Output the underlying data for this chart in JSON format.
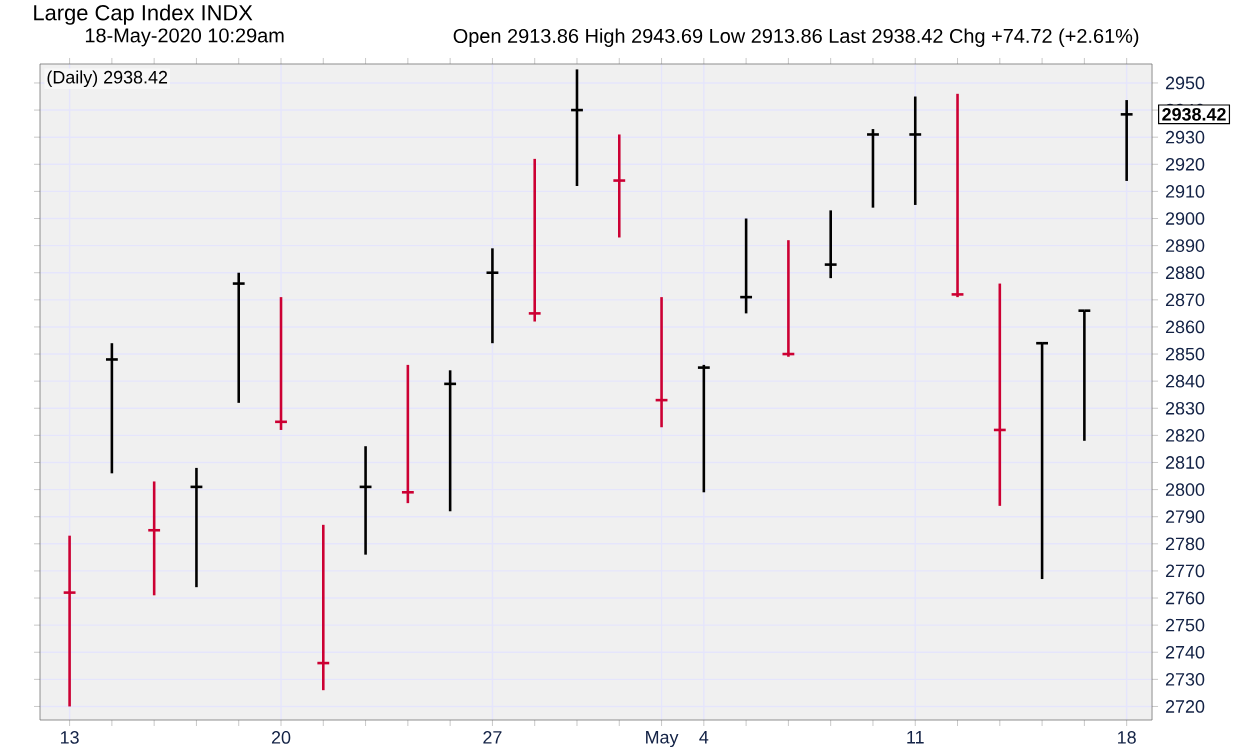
{
  "chart_data": {
    "type": "candlestick",
    "title": "Large Cap Index INDX",
    "categories": [
      "13",
      null,
      null,
      null,
      null,
      "20",
      null,
      null,
      null,
      null,
      "27",
      null,
      null,
      null,
      "May",
      "4",
      null,
      null,
      null,
      null,
      "11",
      null,
      null,
      null,
      null,
      "18"
    ],
    "ohlc": [
      [
        2762,
        2783,
        2720,
        2762
      ],
      [
        2848,
        2854,
        2806,
        2848
      ],
      [
        2785,
        2803,
        2761,
        2785
      ],
      [
        2801,
        2808,
        2764,
        2801
      ],
      [
        2876,
        2880,
        2832,
        2876
      ],
      [
        2825,
        2871,
        2822,
        2825
      ],
      [
        2736,
        2787,
        2726,
        2736
      ],
      [
        2801,
        2816,
        2776,
        2801
      ],
      [
        2799,
        2846,
        2795,
        2799
      ],
      [
        2839,
        2844,
        2792,
        2839
      ],
      [
        2880,
        2889,
        2854,
        2880
      ],
      [
        2865,
        2922,
        2862,
        2865
      ],
      [
        2940,
        2955,
        2912,
        2940
      ],
      [
        2914,
        2931,
        2893,
        2914
      ],
      [
        2833,
        2871,
        2823,
        2833
      ],
      [
        2845,
        2846,
        2799,
        2845
      ],
      [
        2871,
        2900,
        2865,
        2871
      ],
      [
        2850,
        2892,
        2849,
        2850
      ],
      [
        2883,
        2903,
        2878,
        2883
      ],
      [
        2931,
        2933,
        2904,
        2931
      ],
      [
        2931,
        2945,
        2905,
        2931
      ],
      [
        2872,
        2946,
        2871,
        2872
      ],
      [
        2822,
        2876,
        2794,
        2822
      ],
      [
        2854,
        2854,
        2767,
        2854
      ],
      [
        2866,
        2866,
        2818,
        2866
      ],
      [
        2938.42,
        2943.69,
        2913.86,
        2938.42
      ]
    ],
    "colors": [
      "#cc0033",
      "#000000",
      "#cc0033",
      "#000000",
      "#000000",
      "#cc0033",
      "#cc0033",
      "#000000",
      "#cc0033",
      "#000000",
      "#000000",
      "#cc0033",
      "#000000",
      "#cc0033",
      "#cc0033",
      "#000000",
      "#000000",
      "#cc0033",
      "#000000",
      "#000000",
      "#000000",
      "#cc0033",
      "#cc0033",
      "#000000",
      "#000000",
      "#000000"
    ],
    "ylim": [
      2715,
      2957
    ],
    "yticks": [
      2720,
      2730,
      2740,
      2750,
      2760,
      2770,
      2780,
      2790,
      2800,
      2810,
      2820,
      2830,
      2840,
      2850,
      2860,
      2870,
      2880,
      2890,
      2900,
      2910,
      2920,
      2930,
      2940,
      2950
    ],
    "grid": true,
    "annotations": [
      "18-May-2020 10:29am",
      "Open 2913.86  High 2943.69  Low 2913.86  Last 2938.42  Chg +74.72 (+2.61%)",
      "(Daily) 2938.42",
      {
        "text": "2938.42",
        "x": "18",
        "y": 2938.42
      }
    ]
  }
}
